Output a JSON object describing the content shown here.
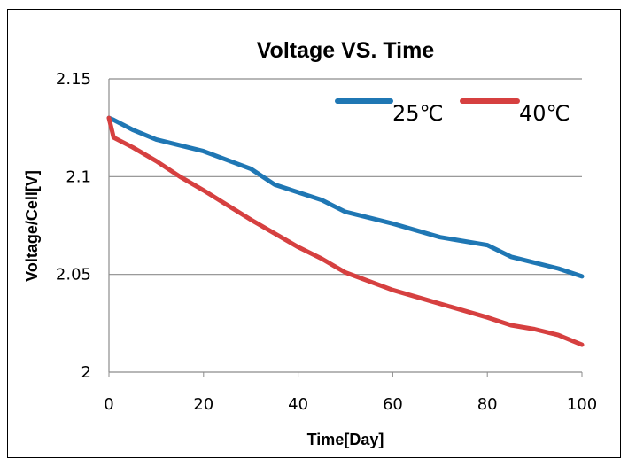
{
  "chart_data": {
    "type": "line",
    "title": "Voltage VS. Time",
    "xlabel": "Time[Day]",
    "ylabel": "Voltage/Cell[V]",
    "xlim": [
      0,
      100
    ],
    "ylim": [
      2,
      2.15
    ],
    "x_ticks": [
      "0",
      "20",
      "40",
      "60",
      "80",
      "100"
    ],
    "y_ticks": [
      "2",
      "2.05",
      "2.1",
      "2.15"
    ],
    "grid": "horizontal",
    "legend": "top-right",
    "series": [
      {
        "name": "25℃",
        "color": "#1f77b4",
        "x": [
          0,
          1,
          5,
          10,
          20,
          30,
          35,
          40,
          45,
          50,
          60,
          70,
          80,
          85,
          90,
          95,
          100
        ],
        "y": [
          2.13,
          2.129,
          2.124,
          2.119,
          2.113,
          2.104,
          2.096,
          2.092,
          2.088,
          2.082,
          2.076,
          2.069,
          2.065,
          2.059,
          2.056,
          2.053,
          2.049
        ]
      },
      {
        "name": "40℃",
        "color": "#d64040",
        "x": [
          0,
          1,
          5,
          10,
          15,
          20,
          30,
          40,
          45,
          50,
          60,
          70,
          80,
          85,
          90,
          95,
          100
        ],
        "y": [
          2.13,
          2.12,
          2.115,
          2.108,
          2.1,
          2.093,
          2.078,
          2.064,
          2.058,
          2.051,
          2.042,
          2.035,
          2.028,
          2.024,
          2.022,
          2.019,
          2.014
        ]
      }
    ]
  }
}
